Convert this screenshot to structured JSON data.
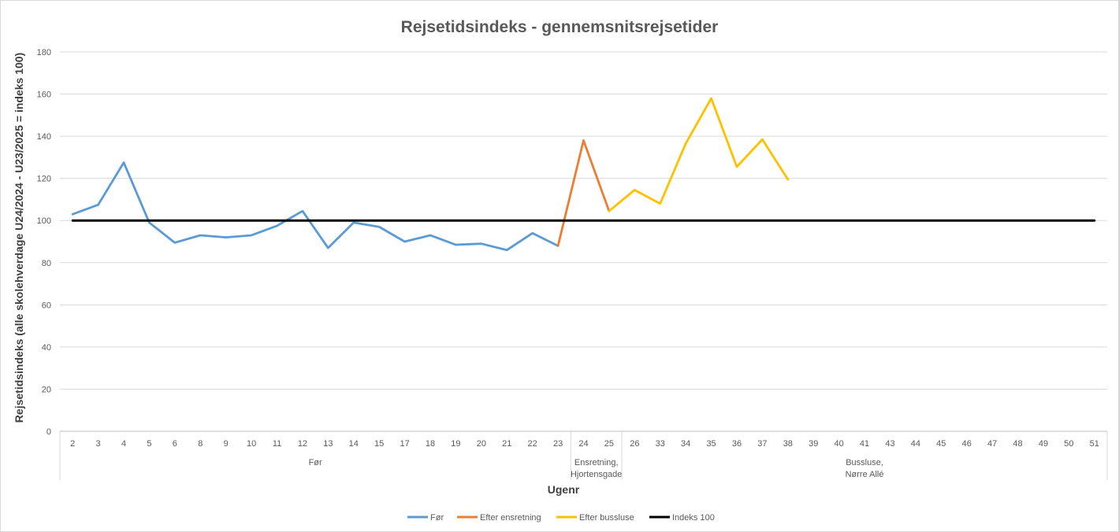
{
  "chart_data": {
    "type": "line",
    "title": "Rejsetidsindeks - gennemsnitsrejsetider",
    "xlabel": "Ugenr",
    "ylabel": "Rejsetidsindeks (alle skolehverdage U24/2024 - U23/2025 = indeks 100)",
    "ylim": [
      0,
      180
    ],
    "yticks": [
      0,
      20,
      40,
      60,
      80,
      100,
      120,
      140,
      160,
      180
    ],
    "grid": true,
    "legend_position": "bottom",
    "categories": [
      "2",
      "3",
      "4",
      "5",
      "6",
      "8",
      "9",
      "10",
      "11",
      "12",
      "13",
      "14",
      "15",
      "17",
      "18",
      "19",
      "20",
      "21",
      "22",
      "23",
      "24",
      "25",
      "26",
      "33",
      "34",
      "35",
      "36",
      "37",
      "38",
      "39",
      "40",
      "41",
      "43",
      "44",
      "45",
      "46",
      "47",
      "48",
      "49",
      "50",
      "51"
    ],
    "groups": [
      {
        "lines": [
          "Før"
        ],
        "start": 0,
        "end": 19
      },
      {
        "lines": [
          "Ensretning,",
          "Hjortensgade"
        ],
        "start": 20,
        "end": 21
      },
      {
        "lines": [
          "Bussluse,",
          "Nørre Allé"
        ],
        "start": 22,
        "end": 40
      }
    ],
    "series": [
      {
        "name": "Før",
        "color": "#5b9bd5",
        "values": [
          103,
          107.5,
          127.5,
          99,
          89.5,
          93,
          92,
          93,
          97.5,
          104.5,
          87,
          99,
          97,
          90,
          93,
          88.5,
          89,
          86,
          94,
          88,
          null,
          null,
          null,
          null,
          null,
          null,
          null,
          null,
          null,
          null,
          null,
          null,
          null,
          null,
          null,
          null,
          null,
          null,
          null,
          null,
          null
        ]
      },
      {
        "name": "Efter ensretning",
        "color": "#ed7d31",
        "values": [
          null,
          null,
          null,
          null,
          null,
          null,
          null,
          null,
          null,
          null,
          null,
          null,
          null,
          null,
          null,
          null,
          null,
          null,
          null,
          88,
          138,
          104.5,
          null,
          null,
          null,
          null,
          null,
          null,
          null,
          null,
          null,
          null,
          null,
          null,
          null,
          null,
          null,
          null,
          null,
          null,
          null
        ]
      },
      {
        "name": "Efter bussluse",
        "color": "#ffc000",
        "values": [
          null,
          null,
          null,
          null,
          null,
          null,
          null,
          null,
          null,
          null,
          null,
          null,
          null,
          null,
          null,
          null,
          null,
          null,
          null,
          null,
          null,
          104.5,
          114.5,
          108,
          136.5,
          158,
          125.5,
          138.5,
          119.5,
          null,
          null,
          null,
          null,
          null,
          null,
          null,
          null,
          null,
          null,
          null,
          null
        ]
      },
      {
        "name": "Indeks 100",
        "color": "#000000",
        "values": [
          100,
          100,
          100,
          100,
          100,
          100,
          100,
          100,
          100,
          100,
          100,
          100,
          100,
          100,
          100,
          100,
          100,
          100,
          100,
          100,
          100,
          100,
          100,
          100,
          100,
          100,
          100,
          100,
          100,
          100,
          100,
          100,
          100,
          100,
          100,
          100,
          100,
          100,
          100,
          100,
          100
        ]
      }
    ]
  }
}
